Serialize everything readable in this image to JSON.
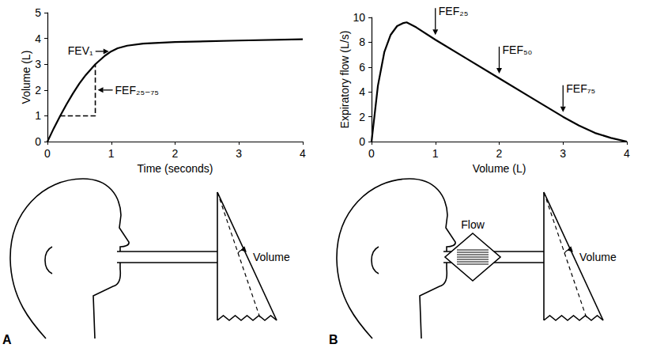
{
  "chart_data": [
    {
      "type": "line",
      "x_label": "Time (seconds)",
      "y_label": "Volume (L)",
      "xlim": [
        0,
        4
      ],
      "xticks": [
        0,
        1,
        2,
        3,
        4
      ],
      "ylim": [
        0,
        5
      ],
      "yticks": [
        0,
        1,
        2,
        3,
        4,
        5
      ],
      "grid": false,
      "series": [
        {
          "color": "#000000",
          "line_style": "solid",
          "x": [
            0,
            0.1,
            0.2,
            0.3,
            0.4,
            0.5,
            0.6,
            0.75,
            0.9,
            1.0,
            1.1,
            1.25,
            1.5,
            2,
            3,
            4
          ],
          "values": [
            0,
            0.52,
            1.0,
            1.45,
            1.87,
            2.25,
            2.58,
            3.0,
            3.33,
            3.5,
            3.62,
            3.72,
            3.8,
            3.86,
            3.92,
            3.97
          ]
        },
        {
          "color": "#000000",
          "line_style": "dashed",
          "x": [
            0.2,
            0.75,
            0.75
          ],
          "values": [
            1,
            1,
            3
          ]
        }
      ],
      "annotations": [
        {
          "text": "FEV₁",
          "x": 1.0,
          "y": 3.5
        },
        {
          "text": "FEF₂₅₋₇₅",
          "x": 0.75,
          "y": 2.0
        }
      ]
    },
    {
      "type": "line",
      "x_label": "Volume (L)",
      "y_label": "Expiratory flow (L/s)",
      "xlim": [
        0,
        4
      ],
      "xticks": [
        0,
        1,
        2,
        3,
        4
      ],
      "ylim": [
        0,
        10
      ],
      "yticks": [
        0,
        2,
        4,
        6,
        8,
        10
      ],
      "grid": false,
      "series": [
        {
          "color": "#000000",
          "line_style": "solid",
          "x": [
            0,
            0.1,
            0.2,
            0.3,
            0.4,
            0.5,
            0.55,
            0.7,
            1,
            1.5,
            2,
            2.5,
            3,
            3.25,
            3.5,
            3.75,
            4
          ],
          "values": [
            0,
            4.5,
            7.2,
            8.6,
            9.3,
            9.55,
            9.6,
            9.2,
            8.2,
            6.65,
            5.1,
            3.55,
            2.0,
            1.3,
            0.7,
            0.3,
            0
          ]
        }
      ],
      "annotations": [
        {
          "text": "FEF₂₅",
          "x": 1,
          "y": 8.2
        },
        {
          "text": "FEF₅₀",
          "x": 2,
          "y": 5.1
        },
        {
          "text": "FEF₇₅",
          "x": 3,
          "y": 2.0
        }
      ]
    }
  ],
  "diagrams": [
    {
      "panel": "A",
      "volume_label": "Volume"
    },
    {
      "panel": "B",
      "flow_label": "Flow",
      "volume_label": "Volume"
    }
  ]
}
